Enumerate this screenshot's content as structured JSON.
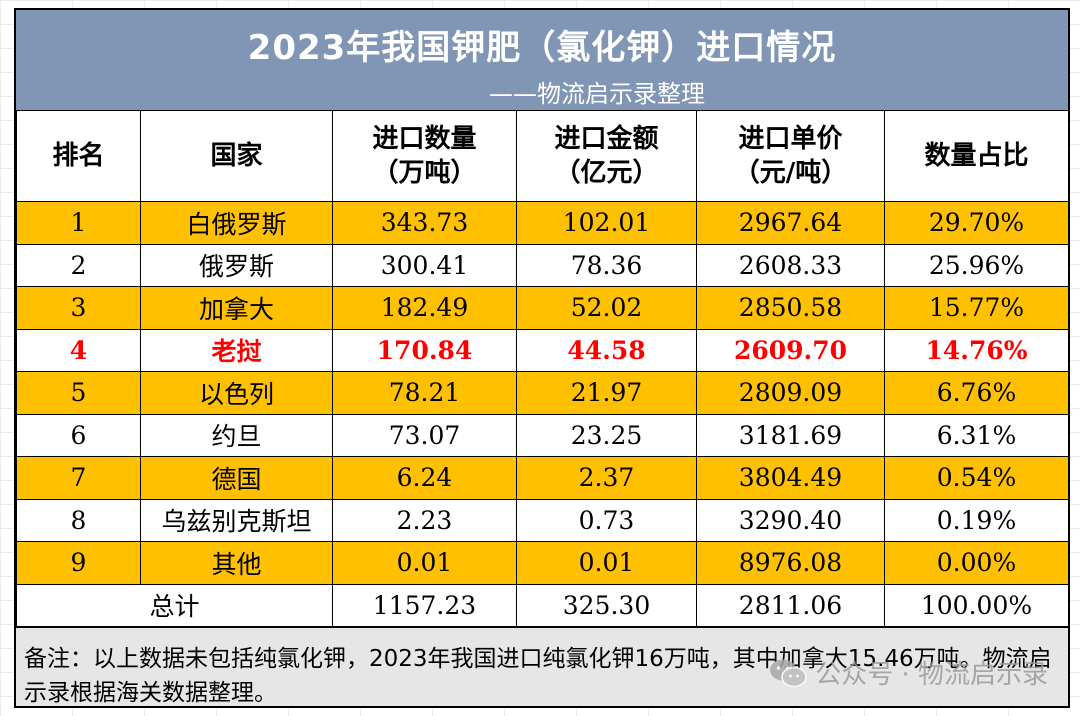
{
  "title": "2023年我国钾肥（氯化钾）进口情况",
  "subtitle": "——物流启示录整理",
  "headers": [
    {
      "line1": "排名",
      "line2": ""
    },
    {
      "line1": "国家",
      "line2": ""
    },
    {
      "line1": "进口数量",
      "line2": "（万吨）"
    },
    {
      "line1": "进口金额",
      "line2": "（亿元）"
    },
    {
      "line1": "进口单价",
      "line2": "（元/吨）"
    },
    {
      "line1": "数量占比",
      "line2": ""
    }
  ],
  "rows": [
    {
      "rank": "1",
      "country": "白俄罗斯",
      "quantity": "343.73",
      "amount": "102.01",
      "price": "2967.64",
      "share": "29.70%"
    },
    {
      "rank": "2",
      "country": "俄罗斯",
      "quantity": "300.41",
      "amount": "78.36",
      "price": "2608.33",
      "share": "25.96%"
    },
    {
      "rank": "3",
      "country": "加拿大",
      "quantity": "182.49",
      "amount": "52.02",
      "price": "2850.58",
      "share": "15.77%"
    },
    {
      "rank": "4",
      "country": "老挝",
      "quantity": "170.84",
      "amount": "44.58",
      "price": "2609.70",
      "share": "14.76%"
    },
    {
      "rank": "5",
      "country": "以色列",
      "quantity": "78.21",
      "amount": "21.97",
      "price": "2809.09",
      "share": "6.76%"
    },
    {
      "rank": "6",
      "country": "约旦",
      "quantity": "73.07",
      "amount": "23.25",
      "price": "3181.69",
      "share": "6.31%"
    },
    {
      "rank": "7",
      "country": "德国",
      "quantity": "6.24",
      "amount": "2.37",
      "price": "3804.49",
      "share": "0.54%"
    },
    {
      "rank": "8",
      "country": "乌兹别克斯坦",
      "quantity": "2.23",
      "amount": "0.73",
      "price": "3290.40",
      "share": "0.19%"
    },
    {
      "rank": "9",
      "country": "其他",
      "quantity": "0.01",
      "amount": "0.01",
      "price": "8976.08",
      "share": "0.00%"
    }
  ],
  "total": {
    "label": "总计",
    "quantity": "1157.23",
    "amount": "325.30",
    "price": "2811.06",
    "share": "100.00%"
  },
  "note": "备注：以上数据未包括纯氯化钾，2023年我国进口纯氯化钾16万吨，其中加拿大15.46万吨。物流启示录根据海关数据整理。",
  "watermark": "公众号 · 物流启示录",
  "colors": {
    "title_bg": "#8096b4",
    "stripe": "#ffc000",
    "highlight_text": "#ff0000",
    "note_bg": "#e6e6e6"
  },
  "icons": {
    "watermark": "wechat-icon"
  }
}
